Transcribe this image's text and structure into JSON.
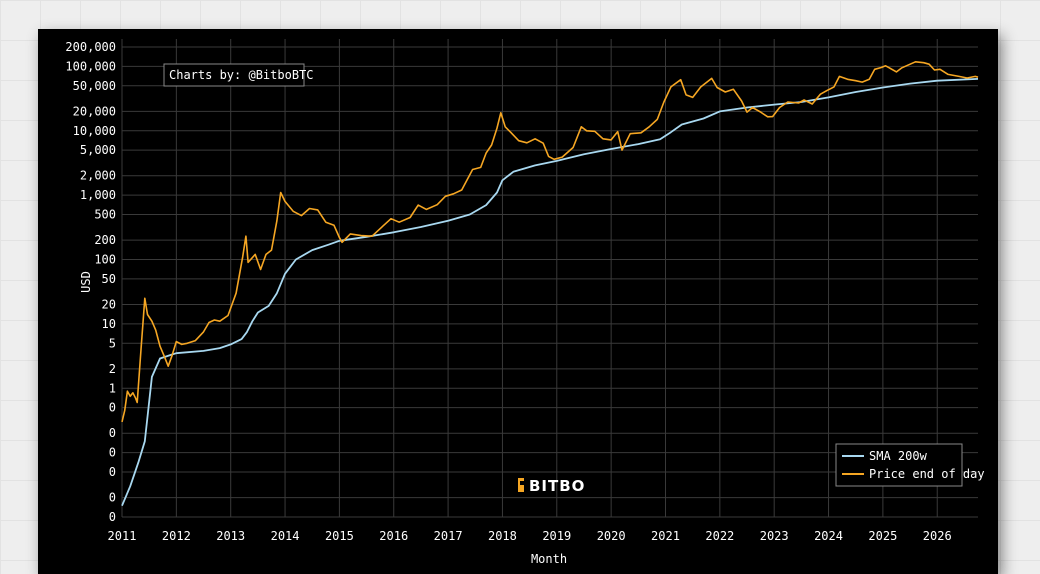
{
  "chart_data": {
    "type": "line",
    "xlabel": "Month",
    "ylabel": "USD",
    "y_scale": "log",
    "x_ticks": [
      "2011",
      "2012",
      "2013",
      "2014",
      "2015",
      "2016",
      "2017",
      "2018",
      "2019",
      "2020",
      "2021",
      "2022",
      "2023",
      "2024",
      "2025",
      "2026"
    ],
    "y_ticks": [
      {
        "value": 0.01,
        "label": "0"
      },
      {
        "value": 0.02,
        "label": "0"
      },
      {
        "value": 0.05,
        "label": "0"
      },
      {
        "value": 0.1,
        "label": "0"
      },
      {
        "value": 0.2,
        "label": "0"
      },
      {
        "value": 0.5,
        "label": "0"
      },
      {
        "value": 1,
        "label": "1"
      },
      {
        "value": 2,
        "label": "2"
      },
      {
        "value": 5,
        "label": "5"
      },
      {
        "value": 10,
        "label": "10"
      },
      {
        "value": 20,
        "label": "20"
      },
      {
        "value": 50,
        "label": "50"
      },
      {
        "value": 100,
        "label": "100"
      },
      {
        "value": 200,
        "label": "200"
      },
      {
        "value": 500,
        "label": "500"
      },
      {
        "value": 1000,
        "label": "1,000"
      },
      {
        "value": 2000,
        "label": "2,000"
      },
      {
        "value": 5000,
        "label": "5,000"
      },
      {
        "value": 10000,
        "label": "10,000"
      },
      {
        "value": 20000,
        "label": "20,000"
      },
      {
        "value": 50000,
        "label": "50,000"
      },
      {
        "value": 100000,
        "label": "100,000"
      },
      {
        "value": 200000,
        "label": "200,000"
      }
    ],
    "xlim": [
      2011.0,
      2026.75
    ],
    "ylim": [
      0.01,
      200000
    ],
    "grid": true,
    "legend_position": "bottom-right",
    "credit": "Charts by: @BitboBTC",
    "watermark": "BITBO",
    "series": [
      {
        "name": "SMA 200w",
        "color": "#a8d8f0",
        "points": [
          [
            2011.0,
            0.015
          ],
          [
            2011.15,
            0.03
          ],
          [
            2011.3,
            0.07
          ],
          [
            2011.42,
            0.15
          ],
          [
            2011.55,
            1.5
          ],
          [
            2011.7,
            2.9
          ],
          [
            2011.9,
            3.3
          ],
          [
            2012.0,
            3.5
          ],
          [
            2012.5,
            3.8
          ],
          [
            2012.8,
            4.2
          ],
          [
            2013.0,
            4.8
          ],
          [
            2013.2,
            5.8
          ],
          [
            2013.3,
            7.5
          ],
          [
            2013.4,
            11
          ],
          [
            2013.5,
            15
          ],
          [
            2013.7,
            19
          ],
          [
            2013.85,
            30
          ],
          [
            2014.0,
            60
          ],
          [
            2014.2,
            100
          ],
          [
            2014.5,
            140
          ],
          [
            2014.8,
            170
          ],
          [
            2015.0,
            195
          ],
          [
            2015.5,
            225
          ],
          [
            2016.0,
            265
          ],
          [
            2016.5,
            320
          ],
          [
            2017.0,
            400
          ],
          [
            2017.4,
            500
          ],
          [
            2017.7,
            700
          ],
          [
            2017.9,
            1100
          ],
          [
            2018.0,
            1700
          ],
          [
            2018.2,
            2300
          ],
          [
            2018.6,
            2900
          ],
          [
            2019.0,
            3400
          ],
          [
            2019.5,
            4300
          ],
          [
            2020.0,
            5200
          ],
          [
            2020.5,
            6200
          ],
          [
            2020.9,
            7400
          ],
          [
            2021.1,
            9500
          ],
          [
            2021.3,
            12500
          ],
          [
            2021.7,
            15500
          ],
          [
            2022.0,
            20000
          ],
          [
            2022.5,
            23000
          ],
          [
            2023.0,
            25500
          ],
          [
            2023.5,
            28000
          ],
          [
            2024.0,
            33000
          ],
          [
            2024.5,
            40000
          ],
          [
            2025.0,
            47000
          ],
          [
            2025.5,
            54000
          ],
          [
            2026.0,
            60000
          ],
          [
            2026.75,
            64000
          ]
        ]
      },
      {
        "name": "Price end of day",
        "color": "#f5a623",
        "points": [
          [
            2011.0,
            0.3
          ],
          [
            2011.05,
            0.45
          ],
          [
            2011.1,
            0.9
          ],
          [
            2011.15,
            0.75
          ],
          [
            2011.2,
            0.85
          ],
          [
            2011.25,
            0.7
          ],
          [
            2011.28,
            0.6
          ],
          [
            2011.35,
            4
          ],
          [
            2011.42,
            25
          ],
          [
            2011.47,
            14
          ],
          [
            2011.55,
            11
          ],
          [
            2011.62,
            8
          ],
          [
            2011.7,
            4.5
          ],
          [
            2011.78,
            3.1
          ],
          [
            2011.85,
            2.2
          ],
          [
            2011.92,
            3.2
          ],
          [
            2012.0,
            5.3
          ],
          [
            2012.1,
            4.8
          ],
          [
            2012.2,
            5
          ],
          [
            2012.35,
            5.5
          ],
          [
            2012.5,
            7.5
          ],
          [
            2012.6,
            10.5
          ],
          [
            2012.7,
            11.5
          ],
          [
            2012.8,
            11
          ],
          [
            2012.95,
            13.5
          ],
          [
            2013.1,
            30
          ],
          [
            2013.22,
            110
          ],
          [
            2013.28,
            230
          ],
          [
            2013.32,
            90
          ],
          [
            2013.45,
            120
          ],
          [
            2013.55,
            70
          ],
          [
            2013.65,
            120
          ],
          [
            2013.75,
            140
          ],
          [
            2013.85,
            400
          ],
          [
            2013.92,
            1100
          ],
          [
            2014.0,
            800
          ],
          [
            2014.15,
            560
          ],
          [
            2014.3,
            480
          ],
          [
            2014.45,
            620
          ],
          [
            2014.6,
            590
          ],
          [
            2014.75,
            380
          ],
          [
            2014.9,
            340
          ],
          [
            2015.0,
            220
          ],
          [
            2015.05,
            185
          ],
          [
            2015.2,
            250
          ],
          [
            2015.4,
            235
          ],
          [
            2015.6,
            230
          ],
          [
            2015.8,
            330
          ],
          [
            2015.95,
            430
          ],
          [
            2016.1,
            380
          ],
          [
            2016.3,
            450
          ],
          [
            2016.45,
            700
          ],
          [
            2016.6,
            600
          ],
          [
            2016.8,
            710
          ],
          [
            2016.95,
            960
          ],
          [
            2017.1,
            1050
          ],
          [
            2017.25,
            1200
          ],
          [
            2017.45,
            2500
          ],
          [
            2017.6,
            2700
          ],
          [
            2017.7,
            4500
          ],
          [
            2017.8,
            6000
          ],
          [
            2017.9,
            11000
          ],
          [
            2017.97,
            19000
          ],
          [
            2018.05,
            11500
          ],
          [
            2018.15,
            9500
          ],
          [
            2018.3,
            7000
          ],
          [
            2018.45,
            6500
          ],
          [
            2018.6,
            7500
          ],
          [
            2018.75,
            6400
          ],
          [
            2018.85,
            4000
          ],
          [
            2018.95,
            3600
          ],
          [
            2019.1,
            3900
          ],
          [
            2019.3,
            5500
          ],
          [
            2019.45,
            11500
          ],
          [
            2019.55,
            10000
          ],
          [
            2019.7,
            9800
          ],
          [
            2019.85,
            7500
          ],
          [
            2020.0,
            7200
          ],
          [
            2020.12,
            9700
          ],
          [
            2020.2,
            5000
          ],
          [
            2020.35,
            9000
          ],
          [
            2020.55,
            9300
          ],
          [
            2020.7,
            11500
          ],
          [
            2020.85,
            15000
          ],
          [
            2020.97,
            28000
          ],
          [
            2021.1,
            48000
          ],
          [
            2021.28,
            62000
          ],
          [
            2021.38,
            36000
          ],
          [
            2021.5,
            33000
          ],
          [
            2021.65,
            48000
          ],
          [
            2021.85,
            65000
          ],
          [
            2021.95,
            47000
          ],
          [
            2022.1,
            40000
          ],
          [
            2022.25,
            44000
          ],
          [
            2022.4,
            29000
          ],
          [
            2022.5,
            19500
          ],
          [
            2022.6,
            23000
          ],
          [
            2022.75,
            19500
          ],
          [
            2022.88,
            16500
          ],
          [
            2022.97,
            16600
          ],
          [
            2023.1,
            23000
          ],
          [
            2023.25,
            28000
          ],
          [
            2023.45,
            27000
          ],
          [
            2023.55,
            30000
          ],
          [
            2023.7,
            26000
          ],
          [
            2023.85,
            37000
          ],
          [
            2023.97,
            42000
          ],
          [
            2024.1,
            48000
          ],
          [
            2024.2,
            70000
          ],
          [
            2024.35,
            63000
          ],
          [
            2024.5,
            60000
          ],
          [
            2024.62,
            57000
          ],
          [
            2024.75,
            63000
          ],
          [
            2024.85,
            90000
          ],
          [
            2024.97,
            96000
          ],
          [
            2025.05,
            102000
          ],
          [
            2025.25,
            82000
          ],
          [
            2025.35,
            95000
          ],
          [
            2025.5,
            108000
          ],
          [
            2025.6,
            118000
          ],
          [
            2025.75,
            114000
          ],
          [
            2025.85,
            108000
          ],
          [
            2025.95,
            88000
          ],
          [
            2026.05,
            90000
          ],
          [
            2026.2,
            75000
          ],
          [
            2026.4,
            70000
          ],
          [
            2026.55,
            66000
          ],
          [
            2026.7,
            70000
          ],
          [
            2026.75,
            68000
          ]
        ]
      }
    ]
  }
}
